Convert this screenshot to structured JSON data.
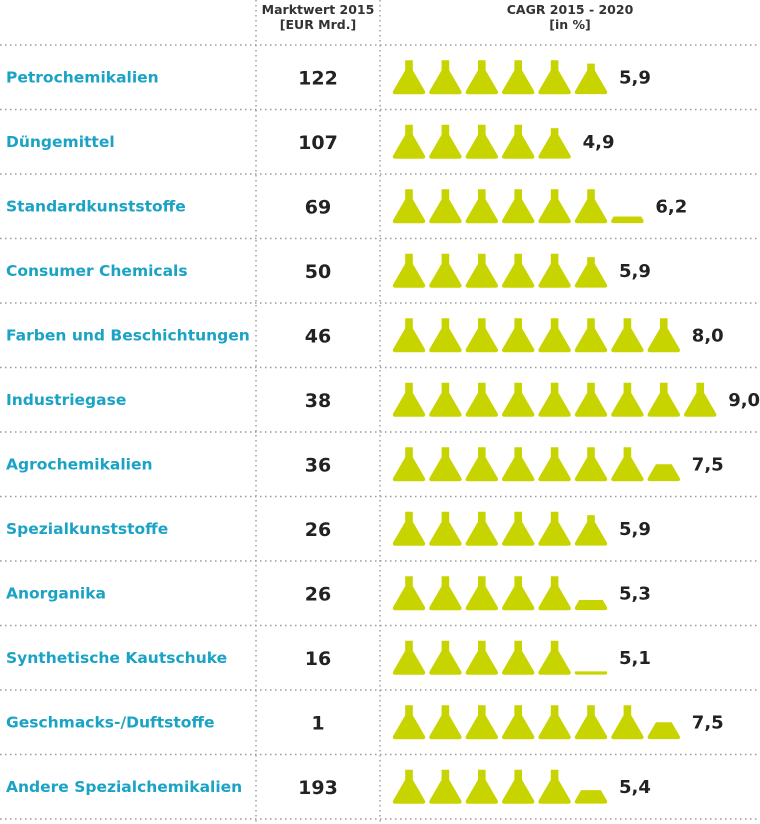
{
  "headers": {
    "market_line1": "Marktwert 2015",
    "market_line2": "[EUR Mrd.]",
    "cagr_line1": "CAGR 2015 - 2020",
    "cagr_line2": "[in %]"
  },
  "colors": {
    "label": "#1aa3c4",
    "value": "#222222",
    "flask": "#c8d400",
    "divider": "#999999"
  },
  "chart_data": {
    "type": "table",
    "title": "",
    "columns": [
      "",
      "Marktwert 2015 [EUR Mrd.]",
      "CAGR 2015 - 2020 [in %]"
    ],
    "icon": "flask-icon",
    "icon_unit": 1.0,
    "rows": [
      {
        "label": "Petrochemikalien",
        "market": "122",
        "cagr": 5.9,
        "cagr_label": "5,9"
      },
      {
        "label": "Düngemittel",
        "market": "107",
        "cagr": 4.9,
        "cagr_label": "4,9"
      },
      {
        "label": "Standardkunststoffe",
        "market": "69",
        "cagr": 6.2,
        "cagr_label": "6,2"
      },
      {
        "label": "Consumer Chemicals",
        "market": "50",
        "cagr": 5.9,
        "cagr_label": "5,9"
      },
      {
        "label": "Farben und Beschichtungen",
        "market": "46",
        "cagr": 8.0,
        "cagr_label": "8,0"
      },
      {
        "label": "Industriegase",
        "market": "38",
        "cagr": 9.0,
        "cagr_label": "9,0"
      },
      {
        "label": "Agrochemikalien",
        "market": "36",
        "cagr": 7.5,
        "cagr_label": "7,5"
      },
      {
        "label": "Spezialkunststoffe",
        "market": "26",
        "cagr": 5.9,
        "cagr_label": "5,9"
      },
      {
        "label": "Anorganika",
        "market": "26",
        "cagr": 5.3,
        "cagr_label": "5,3"
      },
      {
        "label": "Synthetische Kautschuke",
        "market": "16",
        "cagr": 5.1,
        "cagr_label": "5,1"
      },
      {
        "label": "Geschmacks-/Duftstoffe",
        "market": "1",
        "cagr": 7.5,
        "cagr_label": "7,5"
      },
      {
        "label": "Andere Spezialchemikalien",
        "market": "193",
        "cagr": 5.4,
        "cagr_label": "5,4"
      }
    ]
  }
}
